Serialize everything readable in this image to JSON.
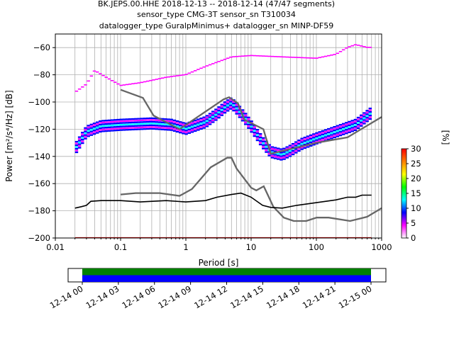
{
  "chart_data": {
    "type": "heatmap",
    "subtype": "probabilistic power spectral density (PPSD)",
    "title_lines": [
      "BK.JEPS.00.HHE   2018-12-13 -- 2018-12-14  (47/47 segments)",
      "sensor_type CMG-3T sensor_sn T310034",
      "datalogger_type GuralpMinimus+ datalogger_sn MINP-DF59"
    ],
    "xlabel": "Period [s]",
    "ylabel": "Power [m²/s⁴/Hz] [dB]",
    "x_scale": "log",
    "xlim": [
      0.01,
      1000
    ],
    "ylim": [
      -200,
      -50
    ],
    "x_ticks": [
      0.01,
      0.1,
      1,
      10,
      100,
      1000
    ],
    "x_tick_labels": [
      "0.01",
      "0.1",
      "1",
      "10",
      "100",
      "1000"
    ],
    "y_ticks": [
      -200,
      -180,
      -160,
      -140,
      -120,
      -100,
      -80,
      -60
    ],
    "y_tick_labels": [
      "−200",
      "−180",
      "−160",
      "−140",
      "−120",
      "−100",
      "−80",
      "−60"
    ],
    "grid": true,
    "colorbar": {
      "label": "[%]",
      "range": [
        0,
        30
      ],
      "ticks": [
        0,
        5,
        10,
        15,
        20,
        25,
        30
      ],
      "colormap": [
        "#ffffff",
        "#ff00ff",
        "#0000ff",
        "#00ffff",
        "#00ff00",
        "#ffff00",
        "#ff8000",
        "#ff0000"
      ]
    },
    "noise_models": [
      {
        "name": "NHNM",
        "color": "#666666",
        "points": [
          [
            0.1,
            -91
          ],
          [
            0.22,
            -97
          ],
          [
            0.32,
            -110
          ],
          [
            0.8,
            -120
          ],
          [
            3.8,
            -98
          ],
          [
            4.6,
            -96.5
          ],
          [
            6.3,
            -101
          ],
          [
            7.9,
            -113
          ],
          [
            15.4,
            -120
          ],
          [
            20,
            -138
          ],
          [
            30,
            -136
          ],
          [
            100,
            -130
          ],
          [
            300,
            -126
          ],
          [
            1000,
            -111
          ]
        ]
      },
      {
        "name": "NLNM",
        "color": "#666666",
        "points": [
          [
            0.1,
            -168
          ],
          [
            0.17,
            -167
          ],
          [
            0.4,
            -167
          ],
          [
            0.8,
            -169
          ],
          [
            1.24,
            -164
          ],
          [
            2.4,
            -148
          ],
          [
            4.3,
            -141
          ],
          [
            5,
            -141
          ],
          [
            6,
            -149
          ],
          [
            10,
            -163
          ],
          [
            12,
            -165
          ],
          [
            15.6,
            -162
          ],
          [
            21.9,
            -177
          ],
          [
            31.6,
            -185
          ],
          [
            45,
            -187.5
          ],
          [
            70,
            -187.5
          ],
          [
            101,
            -185
          ],
          [
            154,
            -185
          ],
          [
            328,
            -187.5
          ],
          [
            600,
            -184.4
          ],
          [
            1000,
            -178
          ]
        ]
      }
    ],
    "mode_curve": {
      "color": "#000000",
      "points": [
        [
          0.02,
          -178
        ],
        [
          0.025,
          -177
        ],
        [
          0.03,
          -176
        ],
        [
          0.035,
          -173
        ],
        [
          0.05,
          -172.5
        ],
        [
          0.1,
          -172.5
        ],
        [
          0.2,
          -173.5
        ],
        [
          0.5,
          -172.5
        ],
        [
          1,
          -173.5
        ],
        [
          2,
          -172.5
        ],
        [
          3,
          -170
        ],
        [
          5,
          -168
        ],
        [
          7,
          -167
        ],
        [
          10,
          -170
        ],
        [
          15,
          -176
        ],
        [
          20,
          -177.5
        ],
        [
          30,
          -178
        ],
        [
          50,
          -176
        ],
        [
          100,
          -174
        ],
        [
          200,
          -172
        ],
        [
          300,
          -170
        ],
        [
          400,
          -170
        ],
        [
          500,
          -168.5
        ],
        [
          700,
          -168.5
        ]
      ]
    },
    "data_band": {
      "period_range": [
        0.02,
        700
      ],
      "main_band": [
        [
          0.02,
          -135
        ],
        [
          0.03,
          -122
        ],
        [
          0.05,
          -118
        ],
        [
          0.1,
          -117
        ],
        [
          0.3,
          -116
        ],
        [
          0.6,
          -117
        ],
        [
          1,
          -120
        ],
        [
          2,
          -115
        ],
        [
          3,
          -109
        ],
        [
          4,
          -104
        ],
        [
          5,
          -101
        ],
        [
          6,
          -105
        ],
        [
          8,
          -112
        ],
        [
          10,
          -118
        ],
        [
          15,
          -130
        ],
        [
          20,
          -137
        ],
        [
          30,
          -139
        ],
        [
          40,
          -136
        ],
        [
          60,
          -131
        ],
        [
          100,
          -127
        ],
        [
          200,
          -122
        ],
        [
          400,
          -117
        ],
        [
          700,
          -108
        ]
      ],
      "upper_envelope": [
        [
          0.02,
          -93
        ],
        [
          0.03,
          -87
        ],
        [
          0.04,
          -77
        ],
        [
          0.06,
          -82
        ],
        [
          0.1,
          -88
        ],
        [
          0.2,
          -86
        ],
        [
          0.5,
          -82
        ],
        [
          1,
          -80
        ],
        [
          2,
          -74
        ],
        [
          5,
          -67
        ],
        [
          10,
          -66
        ],
        [
          30,
          -67
        ],
        [
          100,
          -68
        ],
        [
          200,
          -65
        ],
        [
          300,
          -60
        ],
        [
          400,
          -58
        ],
        [
          600,
          -60
        ]
      ],
      "time_coverage": {
        "start_label": "12-14 00",
        "end_label": "12-15 00",
        "tick_labels": [
          "12-14 00",
          "12-14 03",
          "12-14 06",
          "12-14 09",
          "12-14 12",
          "12-14 15",
          "12-14 18",
          "12-14 21",
          "12-15 00"
        ],
        "coverage_fraction": 1.0,
        "rows": [
          "#008000",
          "#0000ff"
        ]
      }
    }
  }
}
